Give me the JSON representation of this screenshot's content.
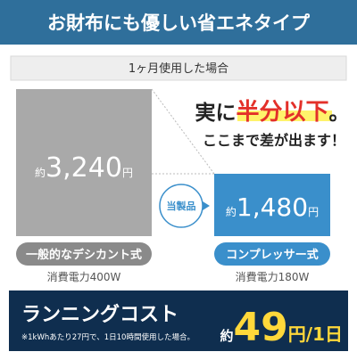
{
  "header": {
    "title": "お財布にも優しい省エネタイプ"
  },
  "condition": "1ヶ月使用した場合",
  "headline": {
    "prefix": "実に",
    "highlight": "半分以下",
    "suffix": "。",
    "sub": "ここまで差が出ます！"
  },
  "badge": "当製品",
  "items": [
    {
      "approx": "約",
      "amount": "3,240",
      "unit": "円",
      "label": "一般的なデシカント式",
      "power": "消費電力400W"
    },
    {
      "approx": "約",
      "amount": "1,480",
      "unit": "円",
      "label": "コンプレッサー式",
      "power": "消費電力180W"
    }
  ],
  "footer": {
    "title": "ランニングコスト",
    "note": "※1kWhあたり27円で、1日10時間使用した場合。",
    "approx": "約",
    "amount": "49",
    "unit": "円",
    "per": "/1日"
  }
}
